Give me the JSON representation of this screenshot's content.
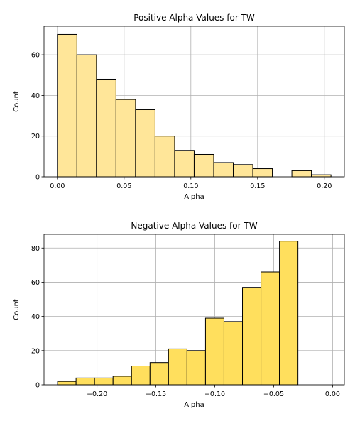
{
  "chart_data": [
    {
      "type": "bar",
      "title": "Positive Alpha Values for TW",
      "xlabel": "Alpha",
      "ylabel": "Count",
      "bin_edges": [
        0.0,
        0.01464,
        0.02928,
        0.04392,
        0.05856,
        0.0732,
        0.08784,
        0.10248,
        0.11712,
        0.13176,
        0.1464,
        0.16104,
        0.17568,
        0.19032,
        0.20496
      ],
      "values": [
        70,
        60,
        48,
        38,
        33,
        20,
        13,
        11,
        7,
        6,
        4,
        0,
        3,
        1
      ],
      "xlim": [
        -0.01,
        0.215
      ],
      "ylim": [
        0,
        74
      ],
      "xticks": [
        0.0,
        0.05,
        0.1,
        0.15,
        0.2
      ],
      "xtick_labels": [
        "0.00",
        "0.05",
        "0.10",
        "0.15",
        "0.20"
      ],
      "yticks": [
        0,
        20,
        40,
        60
      ],
      "ytick_labels": [
        "0",
        "20",
        "40",
        "60"
      ],
      "grid": true,
      "color": "#ffe699"
    },
    {
      "type": "bar",
      "title": "Negative Alpha Values for TW",
      "xlabel": "Alpha",
      "ylabel": "Count",
      "bin_edges": [
        -0.2335,
        -0.2178,
        -0.2021,
        -0.1864,
        -0.1707,
        -0.155,
        -0.1393,
        -0.1236,
        -0.1079,
        -0.0922,
        -0.0765,
        -0.0608,
        -0.0451,
        -0.0294,
        -0.0137,
        -0.0008
      ],
      "values": [
        2,
        4,
        4,
        5,
        11,
        13,
        21,
        20,
        39,
        37,
        57,
        66,
        84,
        0,
        0
      ],
      "xlim": [
        -0.245,
        0.01
      ],
      "ylim": [
        0,
        88
      ],
      "xticks": [
        -0.2,
        -0.15,
        -0.1,
        -0.05,
        0.0
      ],
      "xtick_labels": [
        "−0.20",
        "−0.15",
        "−0.10",
        "−0.05",
        "0.00"
      ],
      "yticks": [
        0,
        20,
        40,
        60,
        80
      ],
      "ytick_labels": [
        "0",
        "20",
        "40",
        "60",
        "80"
      ],
      "grid": true,
      "color": "#ffdf5d"
    }
  ]
}
